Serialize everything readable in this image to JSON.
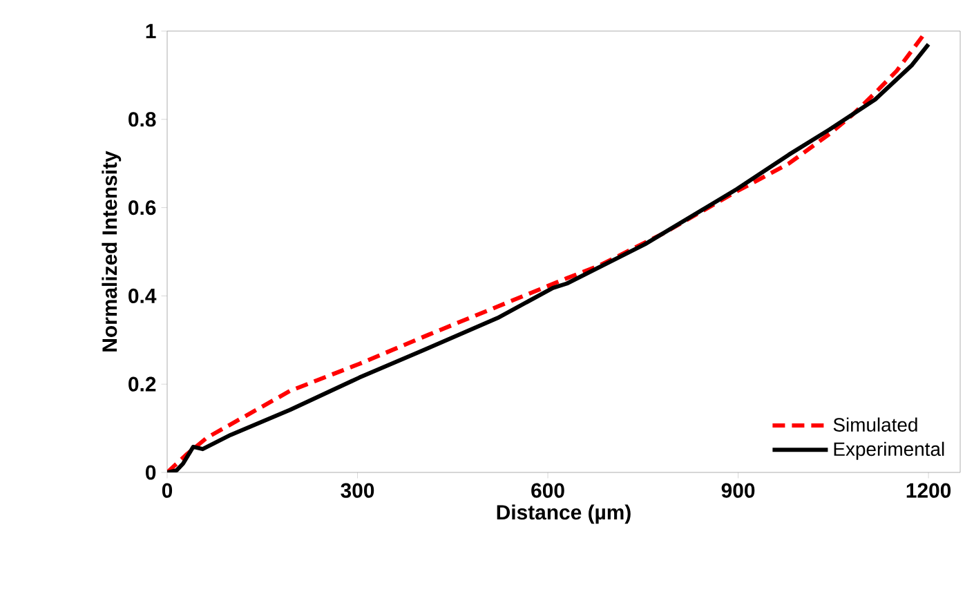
{
  "chart_data": {
    "type": "line",
    "xlabel": "Distance (µm)",
    "ylabel": "Normalized Intensity",
    "xlim": [
      0,
      1250
    ],
    "xticks": [
      0,
      300,
      600,
      900,
      1200
    ],
    "ylim": [
      0,
      1
    ],
    "yticks": [
      0,
      0.2,
      0.4,
      0.6,
      0.8,
      1
    ],
    "grid": false,
    "legend": "bottom right",
    "marker": "none",
    "series": [
      {
        "name": "Simulated",
        "color": "#ff0000",
        "line_style": "dashed",
        "x": [
          0,
          30,
          63,
          120,
          194,
          303,
          412,
          521,
          630,
          680,
          780,
          898,
          980,
          1044,
          1080,
          1116,
          1150,
          1189,
          1196
        ],
        "values": [
          0,
          0.04,
          0.079,
          0.125,
          0.185,
          0.246,
          0.312,
          0.376,
          0.44,
          0.468,
          0.54,
          0.637,
          0.7,
          0.767,
          0.81,
          0.86,
          0.91,
          0.985,
          1.0
        ]
      },
      {
        "name": "Experimental",
        "color": "#000000",
        "line_style": "solid",
        "x": [
          0,
          15,
          25,
          41,
          56,
          100,
          194,
          303,
          412,
          521,
          608,
          630,
          753,
          898,
          980,
          1044,
          1116,
          1174,
          1200
        ],
        "values": [
          0,
          0.005,
          0.02,
          0.058,
          0.053,
          0.085,
          0.142,
          0.215,
          0.282,
          0.35,
          0.418,
          0.428,
          0.517,
          0.642,
          0.72,
          0.777,
          0.845,
          0.923,
          0.97
        ]
      }
    ]
  }
}
